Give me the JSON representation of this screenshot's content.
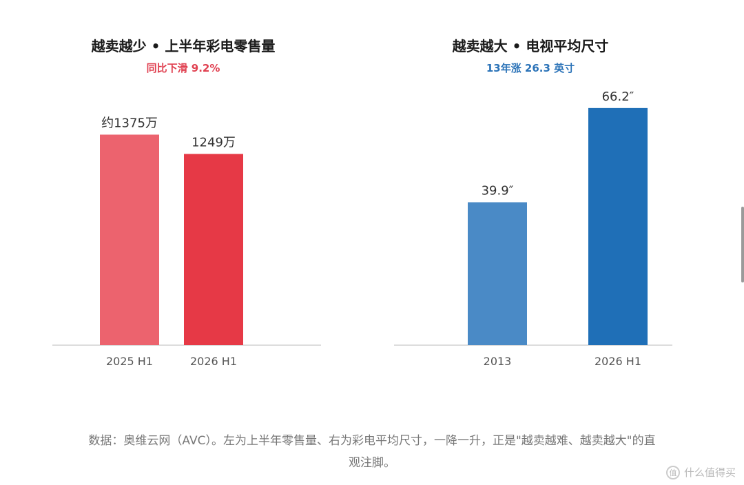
{
  "chart_data": [
    {
      "type": "bar",
      "title": "越卖越少 • 上半年彩电零售量",
      "subtitle": "同比下滑 9.2%",
      "subtitle_color": "#e04050",
      "categories": [
        "2025 H1",
        "2026 H1"
      ],
      "values": [
        1375,
        1249
      ],
      "value_labels": [
        "约1375万",
        "1249万"
      ],
      "colors": [
        "#ec636e",
        "#e63946"
      ],
      "ylim": [
        0,
        1530
      ],
      "grid": false
    },
    {
      "type": "bar",
      "title": "越卖越大 • 电视平均尺寸",
      "subtitle": "13年涨 26.3 英寸",
      "subtitle_color": "#2b73b8",
      "categories": [
        "2013",
        "2026 H1"
      ],
      "values": [
        39.9,
        66.2
      ],
      "value_labels": [
        "39.9″",
        "66.2″"
      ],
      "colors": [
        "#4a8ac6",
        "#1f6fb7"
      ],
      "ylim": [
        0,
        65.4
      ],
      "grid": false
    }
  ],
  "caption": {
    "line1": "数据：奥维云网（AVC）。左为上半年零售量、右为彩电平均尺寸，一降一升，正是\"越卖越难、越卖越大\"的直",
    "line2": "观注脚。"
  },
  "watermark": {
    "logo": "值",
    "text": "什么值得买"
  }
}
